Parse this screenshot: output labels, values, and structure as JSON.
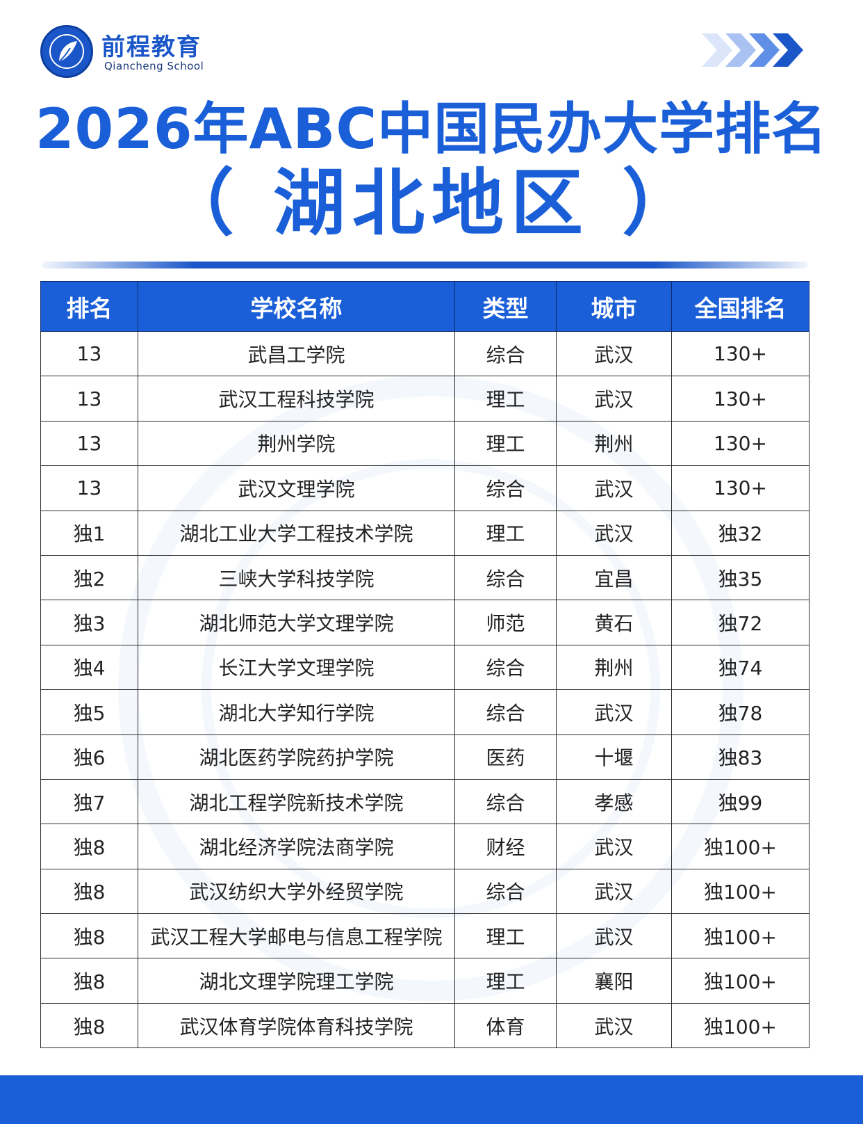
{
  "brand": {
    "name_cn": "前程教育",
    "name_en": "Qiancheng School",
    "primary_color": "#1a5fd8"
  },
  "title": {
    "main": "2026年ABC中国民办大学排名",
    "sub": "（ 湖北地区 ）"
  },
  "table": {
    "headers": [
      "排名",
      "学校名称",
      "类型",
      "城市",
      "全国排名"
    ],
    "rows": [
      [
        "13",
        "武昌工学院",
        "综合",
        "武汉",
        "130+"
      ],
      [
        "13",
        "武汉工程科技学院",
        "理工",
        "武汉",
        "130+"
      ],
      [
        "13",
        "荆州学院",
        "理工",
        "荆州",
        "130+"
      ],
      [
        "13",
        "武汉文理学院",
        "综合",
        "武汉",
        "130+"
      ],
      [
        "独1",
        "湖北工业大学工程技术学院",
        "理工",
        "武汉",
        "独32"
      ],
      [
        "独2",
        "三峡大学科技学院",
        "综合",
        "宜昌",
        "独35"
      ],
      [
        "独3",
        "湖北师范大学文理学院",
        "师范",
        "黄石",
        "独72"
      ],
      [
        "独4",
        "长江大学文理学院",
        "综合",
        "荆州",
        "独74"
      ],
      [
        "独5",
        "湖北大学知行学院",
        "综合",
        "武汉",
        "独78"
      ],
      [
        "独6",
        "湖北医药学院药护学院",
        "医药",
        "十堰",
        "独83"
      ],
      [
        "独7",
        "湖北工程学院新技术学院",
        "综合",
        "孝感",
        "独99"
      ],
      [
        "独8",
        "湖北经济学院法商学院",
        "财经",
        "武汉",
        "独100+"
      ],
      [
        "独8",
        "武汉纺织大学外经贸学院",
        "综合",
        "武汉",
        "独100+"
      ],
      [
        "独8",
        "武汉工程大学邮电与信息工程学院",
        "理工",
        "武汉",
        "独100+"
      ],
      [
        "独8",
        "湖北文理学院理工学院",
        "理工",
        "襄阳",
        "独100+"
      ],
      [
        "独8",
        "武汉体育学院体育科技学院",
        "体育",
        "武汉",
        "独100+"
      ]
    ]
  },
  "footer": {
    "text": ""
  }
}
